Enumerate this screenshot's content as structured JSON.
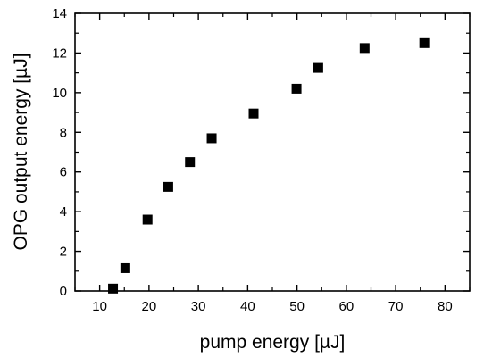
{
  "chart_data": {
    "type": "scatter",
    "title": "",
    "xlabel": "pump energy [µJ]",
    "ylabel": "OPG output energy [µJ]",
    "xlim": [
      5,
      85
    ],
    "ylim": [
      0,
      14
    ],
    "xticks": [
      10,
      20,
      30,
      40,
      50,
      60,
      70,
      80
    ],
    "yticks": [
      0,
      2,
      4,
      6,
      8,
      10,
      12,
      14
    ],
    "x_minor_step": 5,
    "y_minor_step": 1,
    "grid": false,
    "legend": "none",
    "marker": "square",
    "marker_color": "#000000",
    "series": [
      {
        "x": [
          12.7,
          15.2,
          19.7,
          23.9,
          28.3,
          32.7,
          41.2,
          49.9,
          54.3,
          63.7,
          75.8
        ],
        "y": [
          0.12,
          1.15,
          3.6,
          5.25,
          6.5,
          7.7,
          8.95,
          10.2,
          11.25,
          12.25,
          12.5
        ]
      }
    ]
  }
}
